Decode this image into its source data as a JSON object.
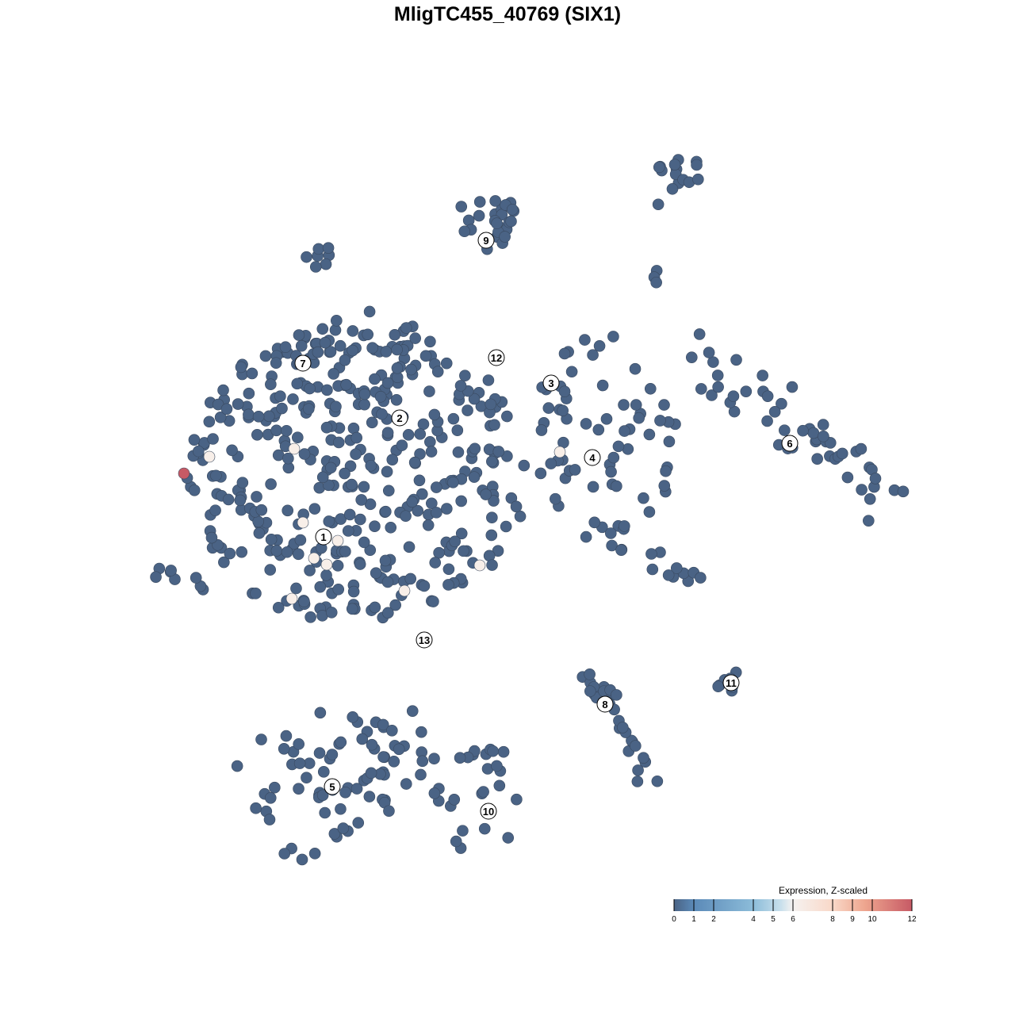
{
  "chart_data": {
    "type": "scatter",
    "title": "MligTC455_40769 (SIX1)",
    "xlabel": "",
    "ylabel": "",
    "grid": false,
    "point_color_default": "#4a6385",
    "cluster_labels": [
      "1",
      "2",
      "3",
      "4",
      "5",
      "6",
      "7",
      "8",
      "9",
      "10",
      "11",
      "12",
      "13"
    ],
    "expressing_cells": [
      {
        "cluster": "1",
        "expression": 12
      },
      {
        "cluster": "1",
        "expression": 6.5
      },
      {
        "cluster": "1",
        "expression": 6.5
      },
      {
        "cluster": "1",
        "expression": 6.5
      },
      {
        "cluster": "1",
        "expression": 6.5
      },
      {
        "cluster": "1",
        "expression": 6.5
      },
      {
        "cluster": "1",
        "expression": 6.5
      },
      {
        "cluster": "1",
        "expression": 6.5
      },
      {
        "cluster": "1",
        "expression": 6.5
      },
      {
        "cluster": "4",
        "expression": 6.5
      },
      {
        "cluster": "13",
        "expression": 6.5
      }
    ],
    "legend": {
      "title": "Expression, Z-scaled",
      "placement": "bottom-right",
      "range": [
        0,
        12
      ],
      "ticks": [
        "0",
        "1",
        "2",
        "4",
        "5",
        "6",
        "8",
        "9",
        "10",
        "12"
      ],
      "colors": [
        "#4a6385",
        "#5b8ab8",
        "#8cbcd9",
        "#c9e0ec",
        "#f5f2f0",
        "#f9d8c8",
        "#eea68f",
        "#c75a65"
      ]
    }
  }
}
